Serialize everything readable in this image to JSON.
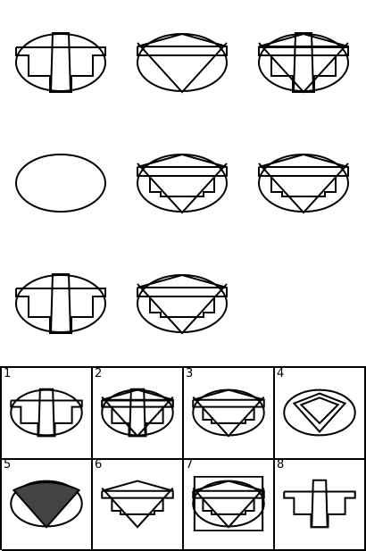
{
  "puzzle": {
    "grid": [
      [
        "ellipse",
        "bar",
        "t_shape"
      ],
      [
        "ellipse",
        "roof",
        "v_line"
      ],
      [
        "ellipse",
        "bar",
        "t_shape",
        "roof",
        "v_line"
      ],
      [
        "ellipse"
      ],
      [
        "ellipse",
        "roof",
        "bar_v",
        "v_line"
      ],
      [
        "ellipse",
        "roof",
        "bar_v",
        "v_line"
      ],
      [
        "ellipse",
        "bar",
        "t_shape"
      ],
      [
        "ellipse",
        "roof",
        "bar_v",
        "v_line"
      ],
      null
    ]
  },
  "answers": [
    {
      "label": "1",
      "shapes": [
        "ellipse",
        "bar",
        "t_shape"
      ]
    },
    {
      "label": "2",
      "shapes": [
        "ellipse",
        "bar",
        "t_shape",
        "roof",
        "v_line"
      ]
    },
    {
      "label": "3",
      "shapes": [
        "ellipse",
        "roof",
        "bar_v",
        "v_line"
      ]
    },
    {
      "label": "4",
      "shapes": [
        "ellipse",
        "diamond"
      ]
    },
    {
      "label": "5",
      "shapes": [
        "ellipse",
        "fan"
      ]
    },
    {
      "label": "6",
      "shapes": [
        "roof",
        "bar_v",
        "v_line"
      ]
    },
    {
      "label": "7",
      "shapes": [
        "ellipse",
        "roof",
        "bar_v",
        "v_line",
        "square"
      ]
    },
    {
      "label": "8",
      "shapes": [
        "bar",
        "t_shape"
      ]
    }
  ]
}
